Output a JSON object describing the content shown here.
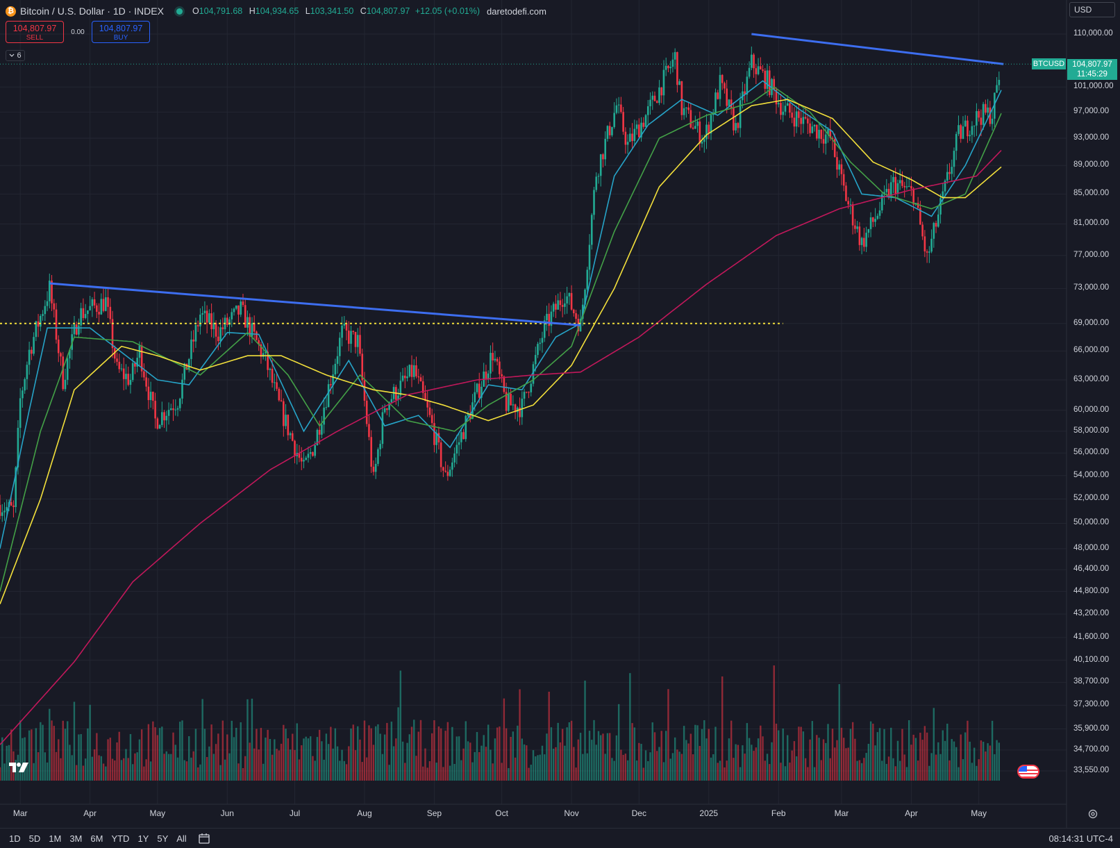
{
  "header": {
    "title": "Bitcoin / U.S. Dollar · 1D · INDEX",
    "logo_glyph": "₿",
    "ohlc": {
      "o_label": "O",
      "o": "104,791.68",
      "h_label": "H",
      "h": "104,934.65",
      "l_label": "L",
      "l": "103,341.50",
      "c_label": "C",
      "c": "104,807.97",
      "change": "+12.05 (+0.01%)"
    },
    "site": "daretodefi.com",
    "colors": {
      "up": "#22ab94",
      "down": "#f23645",
      "accent": "#2962ff"
    }
  },
  "trade": {
    "sell_price": "104,807.97",
    "sell_label": "SELL",
    "spread": "0.00",
    "buy_price": "104,807.97",
    "buy_label": "BUY"
  },
  "indicator_toggle": {
    "icon": "chevron-down-icon",
    "count": "6"
  },
  "currency": "USD",
  "price_tag": {
    "symbol": "BTCUSD",
    "price": "104,807.97",
    "countdown": "11:45:29"
  },
  "chart_data": {
    "type": "candlestick",
    "y_axis_labels": [
      "110,000.00",
      "101,000.00",
      "97,000.00",
      "93,000.00",
      "89,000.00",
      "85,000.00",
      "81,000.00",
      "77,000.00",
      "73,000.00",
      "69,000.00",
      "66,000.00",
      "63,000.00",
      "60,000.00",
      "58,000.00",
      "56,000.00",
      "54,000.00",
      "52,000.00",
      "50,000.00",
      "48,000.00",
      "46,400.00",
      "44,800.00",
      "43,200.00",
      "41,600.00",
      "40,100.00",
      "38,700.00",
      "37,300.00",
      "35,900.00",
      "34,700.00",
      "33,550.00"
    ],
    "y_range": [
      33550,
      110000
    ],
    "y_scale": "log",
    "x_axis_labels": [
      "Mar",
      "Apr",
      "May",
      "Jun",
      "Jul",
      "Aug",
      "Sep",
      "Oct",
      "Nov",
      "Dec",
      "2025",
      "Feb",
      "Mar",
      "Apr",
      "May"
    ],
    "x_range": [
      "2024-02-21",
      "2025-05-15"
    ],
    "price_path": [
      [
        "2024-02-21",
        51500
      ],
      [
        "2024-02-27",
        51000
      ],
      [
        "2024-03-01",
        61000
      ],
      [
        "2024-03-05",
        66000
      ],
      [
        "2024-03-14",
        73000
      ],
      [
        "2024-03-20",
        63000
      ],
      [
        "2024-03-27",
        70000
      ],
      [
        "2024-04-08",
        71500
      ],
      [
        "2024-04-13",
        64000
      ],
      [
        "2024-04-19",
        63000
      ],
      [
        "2024-04-23",
        66000
      ],
      [
        "2024-04-30",
        59000
      ],
      [
        "2024-05-10",
        61000
      ],
      [
        "2024-05-20",
        70000
      ],
      [
        "2024-05-28",
        68000
      ],
      [
        "2024-06-07",
        70500
      ],
      [
        "2024-06-18",
        65000
      ],
      [
        "2024-06-24",
        60500
      ],
      [
        "2024-07-05",
        54500
      ],
      [
        "2024-07-10",
        57000
      ],
      [
        "2024-07-22",
        68000
      ],
      [
        "2024-07-29",
        67000
      ],
      [
        "2024-08-05",
        53500
      ],
      [
        "2024-08-10",
        60500
      ],
      [
        "2024-08-23",
        64000
      ],
      [
        "2024-08-31",
        58500
      ],
      [
        "2024-09-06",
        53800
      ],
      [
        "2024-09-18",
        60500
      ],
      [
        "2024-09-27",
        65800
      ],
      [
        "2024-10-03",
        60600
      ],
      [
        "2024-10-10",
        60300
      ],
      [
        "2024-10-20",
        68500
      ],
      [
        "2024-10-29",
        72500
      ],
      [
        "2024-11-05",
        68800
      ],
      [
        "2024-11-12",
        88000
      ],
      [
        "2024-11-21",
        98000
      ],
      [
        "2024-11-26",
        92000
      ],
      [
        "2024-12-05",
        97000
      ],
      [
        "2024-12-17",
        106000
      ],
      [
        "2024-12-20",
        97500
      ],
      [
        "2024-12-30",
        92800
      ],
      [
        "2025-01-06",
        101500
      ],
      [
        "2025-01-13",
        94500
      ],
      [
        "2025-01-20",
        105000
      ],
      [
        "2025-01-27",
        102000
      ],
      [
        "2025-02-03",
        97500
      ],
      [
        "2025-02-24",
        93000
      ],
      [
        "2025-03-03",
        84500
      ],
      [
        "2025-03-10",
        78500
      ],
      [
        "2025-03-24",
        86500
      ],
      [
        "2025-04-02",
        85000
      ],
      [
        "2025-04-08",
        76500
      ],
      [
        "2025-04-15",
        84500
      ],
      [
        "2025-04-22",
        93500
      ],
      [
        "2025-05-01",
        96500
      ],
      [
        "2025-05-07",
        96800
      ],
      [
        "2025-05-11",
        104800
      ]
    ],
    "moving_averages": [
      {
        "color": "#26a4c8",
        "points": [
          [
            "2024-02-21",
            48000
          ],
          [
            "2024-03-05",
            60000
          ],
          [
            "2024-03-13",
            68500
          ],
          [
            "2024-04-01",
            68500
          ],
          [
            "2024-05-01",
            63000
          ],
          [
            "2024-05-15",
            62500
          ],
          [
            "2024-06-01",
            68000
          ],
          [
            "2024-06-15",
            67800
          ],
          [
            "2024-07-05",
            58000
          ],
          [
            "2024-07-25",
            65000
          ],
          [
            "2024-08-10",
            58500
          ],
          [
            "2024-08-25",
            59500
          ],
          [
            "2024-09-08",
            56500
          ],
          [
            "2024-09-25",
            62500
          ],
          [
            "2024-10-10",
            62000
          ],
          [
            "2024-10-25",
            67500
          ],
          [
            "2024-11-05",
            69000
          ],
          [
            "2024-11-20",
            87500
          ],
          [
            "2024-12-05",
            95000
          ],
          [
            "2024-12-20",
            99000
          ],
          [
            "2025-01-05",
            96500
          ],
          [
            "2025-01-25",
            102000
          ],
          [
            "2025-02-10",
            97500
          ],
          [
            "2025-02-25",
            94000
          ],
          [
            "2025-03-10",
            85000
          ],
          [
            "2025-03-25",
            84500
          ],
          [
            "2025-04-10",
            82000
          ],
          [
            "2025-04-25",
            89000
          ],
          [
            "2025-05-11",
            100500
          ]
        ]
      },
      {
        "color": "#43a047",
        "points": [
          [
            "2024-02-21",
            44800
          ],
          [
            "2024-03-10",
            58000
          ],
          [
            "2024-03-25",
            67500
          ],
          [
            "2024-04-20",
            67000
          ],
          [
            "2024-05-20",
            63500
          ],
          [
            "2024-06-10",
            68000
          ],
          [
            "2024-06-28",
            63500
          ],
          [
            "2024-07-12",
            58500
          ],
          [
            "2024-07-30",
            63500
          ],
          [
            "2024-08-20",
            59000
          ],
          [
            "2024-09-10",
            58000
          ],
          [
            "2024-09-25",
            60500
          ],
          [
            "2024-10-15",
            63000
          ],
          [
            "2024-11-01",
            66500
          ],
          [
            "2024-11-20",
            80000
          ],
          [
            "2024-12-10",
            93000
          ],
          [
            "2024-12-31",
            96500
          ],
          [
            "2025-01-20",
            98500
          ],
          [
            "2025-01-30",
            101000
          ],
          [
            "2025-02-15",
            97000
          ],
          [
            "2025-03-05",
            89500
          ],
          [
            "2025-03-20",
            85000
          ],
          [
            "2025-04-10",
            83000
          ],
          [
            "2025-04-25",
            85000
          ],
          [
            "2025-05-11",
            96800
          ]
        ]
      },
      {
        "color": "#f3e03b",
        "points": [
          [
            "2024-02-21",
            43900
          ],
          [
            "2024-03-10",
            52000
          ],
          [
            "2024-03-25",
            62000
          ],
          [
            "2024-04-15",
            66500
          ],
          [
            "2024-05-01",
            65500
          ],
          [
            "2024-05-20",
            64000
          ],
          [
            "2024-06-10",
            65500
          ],
          [
            "2024-06-25",
            65500
          ],
          [
            "2024-07-15",
            63500
          ],
          [
            "2024-08-05",
            62000
          ],
          [
            "2024-08-20",
            61500
          ],
          [
            "2024-09-05",
            60500
          ],
          [
            "2024-09-25",
            59000
          ],
          [
            "2024-10-15",
            60500
          ],
          [
            "2024-11-01",
            64500
          ],
          [
            "2024-11-20",
            73000
          ],
          [
            "2024-12-10",
            86000
          ],
          [
            "2024-12-31",
            93500
          ],
          [
            "2025-01-20",
            98000
          ],
          [
            "2025-02-05",
            99000
          ],
          [
            "2025-02-25",
            96000
          ],
          [
            "2025-03-15",
            89500
          ],
          [
            "2025-04-01",
            87000
          ],
          [
            "2025-04-15",
            84500
          ],
          [
            "2025-04-25",
            84500
          ],
          [
            "2025-05-11",
            88800
          ]
        ]
      },
      {
        "color": "#c2185b",
        "points": [
          [
            "2024-02-21",
            35000
          ],
          [
            "2024-03-25",
            40000
          ],
          [
            "2024-04-20",
            45500
          ],
          [
            "2024-05-20",
            50000
          ],
          [
            "2024-06-20",
            54500
          ],
          [
            "2024-07-20",
            58000
          ],
          [
            "2024-08-20",
            61500
          ],
          [
            "2024-09-20",
            63000
          ],
          [
            "2024-10-15",
            63500
          ],
          [
            "2024-11-05",
            63800
          ],
          [
            "2024-12-01",
            67500
          ],
          [
            "2024-12-31",
            73500
          ],
          [
            "2025-01-31",
            79500
          ],
          [
            "2025-02-28",
            83000
          ],
          [
            "2025-03-31",
            85500
          ],
          [
            "2025-04-30",
            87500
          ],
          [
            "2025-05-11",
            91200
          ]
        ]
      }
    ],
    "trendlines": [
      {
        "color": "#3d6ef0",
        "from": [
          "2024-03-14",
          73600
        ],
        "to": [
          "2024-11-05",
          68800
        ]
      },
      {
        "color": "#3d6ef0",
        "from": [
          "2025-01-20",
          110000
        ],
        "to": [
          "2025-05-12",
          104800
        ]
      }
    ],
    "horizontal_level": {
      "price": 69000,
      "color": "#f3e03b",
      "from": "2024-02-21",
      "to": "2025-02-03"
    },
    "last_price": 104807.97
  },
  "bottom_bar": {
    "periods": [
      "1D",
      "5D",
      "1M",
      "3M",
      "6M",
      "YTD",
      "1Y",
      "5Y",
      "All"
    ],
    "clock": "08:14:31 UTC-4"
  }
}
